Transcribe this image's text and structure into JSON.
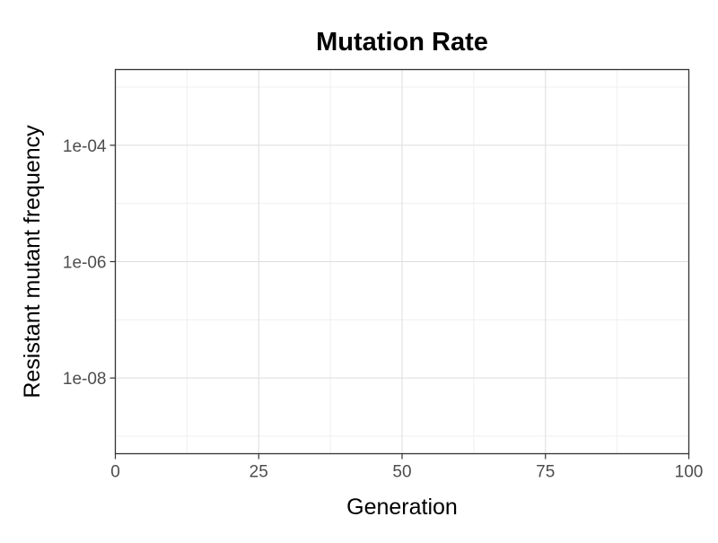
{
  "chart_data": {
    "type": "line",
    "title": "Mutation Rate",
    "xlabel": "Generation",
    "ylabel": "Resistant mutant frequency",
    "x_scale": "linear",
    "y_scale": "log10",
    "xlim": [
      0,
      100
    ],
    "ylim": [
      5e-10,
      0.002
    ],
    "x_ticks": [
      {
        "value": 0,
        "label": "0"
      },
      {
        "value": 25,
        "label": "25"
      },
      {
        "value": 50,
        "label": "50"
      },
      {
        "value": 75,
        "label": "75"
      },
      {
        "value": 100,
        "label": "100"
      }
    ],
    "y_ticks": [
      {
        "value": 1e-08,
        "label": "1e-08"
      },
      {
        "value": 1e-06,
        "label": "1e-06"
      },
      {
        "value": 0.0001,
        "label": "1e-04"
      }
    ],
    "x_minor_ticks": [
      12.5,
      37.5,
      62.5,
      87.5
    ],
    "y_minor_ticks": [
      1e-09,
      1e-07,
      1e-05,
      0.001
    ],
    "grid": true,
    "legend": "none",
    "series": [],
    "colors": {
      "major_grid": "#dedede",
      "minor_grid": "#efefef",
      "panel_border": "#333333",
      "tick_text": "#4d4d4d",
      "text": "#000000"
    }
  }
}
